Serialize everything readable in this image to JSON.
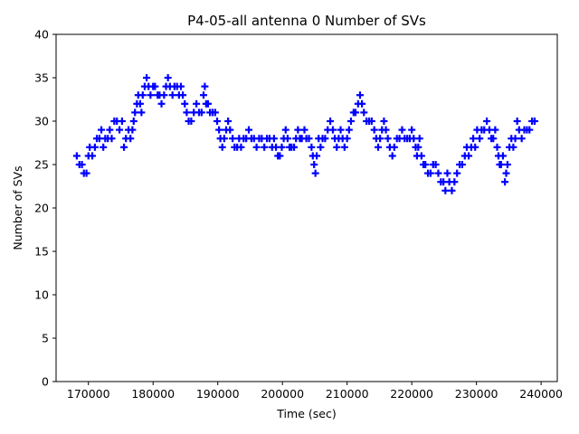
{
  "chart_data": {
    "type": "scatter",
    "title": "P4-05-all antenna 0 Number of SVs",
    "xlabel": "Time (sec)",
    "ylabel": "Number of SVs",
    "xlim": [
      165000,
      242500
    ],
    "ylim": [
      0,
      40
    ],
    "xticks": [
      170000,
      180000,
      190000,
      200000,
      210000,
      220000,
      230000,
      240000
    ],
    "yticks": [
      0,
      5,
      10,
      15,
      20,
      25,
      30,
      35,
      40
    ],
    "grid": false,
    "marker": "plus",
    "color": "#0000ff",
    "series": [
      {
        "name": "antenna 0",
        "points": [
          [
            168200,
            26
          ],
          [
            168600,
            25
          ],
          [
            169000,
            25
          ],
          [
            169300,
            24
          ],
          [
            169700,
            24
          ],
          [
            170000,
            26
          ],
          [
            170200,
            27
          ],
          [
            170600,
            26
          ],
          [
            171000,
            27
          ],
          [
            171300,
            28
          ],
          [
            171700,
            28
          ],
          [
            172000,
            29
          ],
          [
            172300,
            27
          ],
          [
            172600,
            28
          ],
          [
            173000,
            28
          ],
          [
            173300,
            29
          ],
          [
            173600,
            28
          ],
          [
            174000,
            30
          ],
          [
            174400,
            30
          ],
          [
            174800,
            29
          ],
          [
            175200,
            30
          ],
          [
            175500,
            27
          ],
          [
            175800,
            28
          ],
          [
            176200,
            29
          ],
          [
            176500,
            28
          ],
          [
            176800,
            29
          ],
          [
            177000,
            30
          ],
          [
            177200,
            31
          ],
          [
            177500,
            32
          ],
          [
            177700,
            33
          ],
          [
            178000,
            32
          ],
          [
            178200,
            31
          ],
          [
            178400,
            33
          ],
          [
            178700,
            34
          ],
          [
            179000,
            35
          ],
          [
            179300,
            34
          ],
          [
            179600,
            33
          ],
          [
            180000,
            34
          ],
          [
            180300,
            34
          ],
          [
            180700,
            33
          ],
          [
            181000,
            33
          ],
          [
            181300,
            32
          ],
          [
            181700,
            33
          ],
          [
            182000,
            34
          ],
          [
            182300,
            35
          ],
          [
            182600,
            34
          ],
          [
            183000,
            33
          ],
          [
            183300,
            34
          ],
          [
            183700,
            34
          ],
          [
            184000,
            33
          ],
          [
            184300,
            34
          ],
          [
            184600,
            33
          ],
          [
            184900,
            32
          ],
          [
            185200,
            31
          ],
          [
            185500,
            30
          ],
          [
            185900,
            30
          ],
          [
            186300,
            31
          ],
          [
            186700,
            32
          ],
          [
            187100,
            31
          ],
          [
            187500,
            31
          ],
          [
            187800,
            33
          ],
          [
            188000,
            34
          ],
          [
            188200,
            32
          ],
          [
            188500,
            32
          ],
          [
            188800,
            31
          ],
          [
            189200,
            31
          ],
          [
            189600,
            31
          ],
          [
            189900,
            30
          ],
          [
            190200,
            29
          ],
          [
            190400,
            28
          ],
          [
            190700,
            27
          ],
          [
            191000,
            28
          ],
          [
            191300,
            29
          ],
          [
            191600,
            30
          ],
          [
            191900,
            29
          ],
          [
            192300,
            28
          ],
          [
            192600,
            27
          ],
          [
            193000,
            27
          ],
          [
            193300,
            28
          ],
          [
            193600,
            27
          ],
          [
            194000,
            28
          ],
          [
            194400,
            28
          ],
          [
            194800,
            29
          ],
          [
            195200,
            28
          ],
          [
            195600,
            28
          ],
          [
            196000,
            27
          ],
          [
            196400,
            28
          ],
          [
            196800,
            28
          ],
          [
            197200,
            27
          ],
          [
            197600,
            28
          ],
          [
            198000,
            28
          ],
          [
            198400,
            27
          ],
          [
            198700,
            28
          ],
          [
            199000,
            27
          ],
          [
            199300,
            26
          ],
          [
            199600,
            26
          ],
          [
            199900,
            27
          ],
          [
            200200,
            28
          ],
          [
            200500,
            29
          ],
          [
            200800,
            28
          ],
          [
            201100,
            27
          ],
          [
            201400,
            27
          ],
          [
            201800,
            27
          ],
          [
            202100,
            28
          ],
          [
            202400,
            29
          ],
          [
            202700,
            28
          ],
          [
            203000,
            28
          ],
          [
            203400,
            29
          ],
          [
            203700,
            28
          ],
          [
            204100,
            28
          ],
          [
            204500,
            27
          ],
          [
            204700,
            26
          ],
          [
            204900,
            25
          ],
          [
            205100,
            24
          ],
          [
            205300,
            26
          ],
          [
            205600,
            28
          ],
          [
            205900,
            27
          ],
          [
            206200,
            28
          ],
          [
            206600,
            28
          ],
          [
            207000,
            29
          ],
          [
            207400,
            30
          ],
          [
            207800,
            29
          ],
          [
            208100,
            28
          ],
          [
            208400,
            27
          ],
          [
            208700,
            28
          ],
          [
            209000,
            29
          ],
          [
            209300,
            28
          ],
          [
            209600,
            27
          ],
          [
            210000,
            28
          ],
          [
            210300,
            29
          ],
          [
            210600,
            30
          ],
          [
            211000,
            31
          ],
          [
            211300,
            31
          ],
          [
            211700,
            32
          ],
          [
            212000,
            33
          ],
          [
            212300,
            32
          ],
          [
            212600,
            31
          ],
          [
            213000,
            30
          ],
          [
            213400,
            30
          ],
          [
            213800,
            30
          ],
          [
            214200,
            29
          ],
          [
            214500,
            28
          ],
          [
            214800,
            27
          ],
          [
            215100,
            28
          ],
          [
            215400,
            29
          ],
          [
            215700,
            30
          ],
          [
            216000,
            29
          ],
          [
            216300,
            28
          ],
          [
            216600,
            27
          ],
          [
            217000,
            26
          ],
          [
            217300,
            27
          ],
          [
            217700,
            28
          ],
          [
            218100,
            28
          ],
          [
            218500,
            29
          ],
          [
            218900,
            28
          ],
          [
            219300,
            28
          ],
          [
            219700,
            28
          ],
          [
            220000,
            29
          ],
          [
            220300,
            28
          ],
          [
            220600,
            27
          ],
          [
            220800,
            26
          ],
          [
            221000,
            27
          ],
          [
            221200,
            28
          ],
          [
            221500,
            26
          ],
          [
            221800,
            25
          ],
          [
            222100,
            25
          ],
          [
            222500,
            24
          ],
          [
            222900,
            24
          ],
          [
            223300,
            25
          ],
          [
            223700,
            25
          ],
          [
            224100,
            24
          ],
          [
            224500,
            23
          ],
          [
            224900,
            23
          ],
          [
            225200,
            22
          ],
          [
            225500,
            24
          ],
          [
            225800,
            23
          ],
          [
            226200,
            22
          ],
          [
            226600,
            23
          ],
          [
            227000,
            24
          ],
          [
            227400,
            25
          ],
          [
            227800,
            25
          ],
          [
            228200,
            26
          ],
          [
            228500,
            27
          ],
          [
            228800,
            26
          ],
          [
            229200,
            27
          ],
          [
            229500,
            28
          ],
          [
            229800,
            27
          ],
          [
            230100,
            29
          ],
          [
            230500,
            28
          ],
          [
            230800,
            29
          ],
          [
            231200,
            29
          ],
          [
            231600,
            30
          ],
          [
            232000,
            29
          ],
          [
            232300,
            28
          ],
          [
            232600,
            28
          ],
          [
            232900,
            29
          ],
          [
            233200,
            27
          ],
          [
            233400,
            26
          ],
          [
            233600,
            25
          ],
          [
            233800,
            25
          ],
          [
            234100,
            26
          ],
          [
            234400,
            23
          ],
          [
            234600,
            24
          ],
          [
            234800,
            25
          ],
          [
            235100,
            27
          ],
          [
            235400,
            28
          ],
          [
            235700,
            27
          ],
          [
            236000,
            28
          ],
          [
            236300,
            30
          ],
          [
            236600,
            29
          ],
          [
            237000,
            28
          ],
          [
            237400,
            29
          ],
          [
            237800,
            29
          ],
          [
            238200,
            29
          ],
          [
            238600,
            30
          ],
          [
            239000,
            30
          ]
        ]
      }
    ]
  }
}
